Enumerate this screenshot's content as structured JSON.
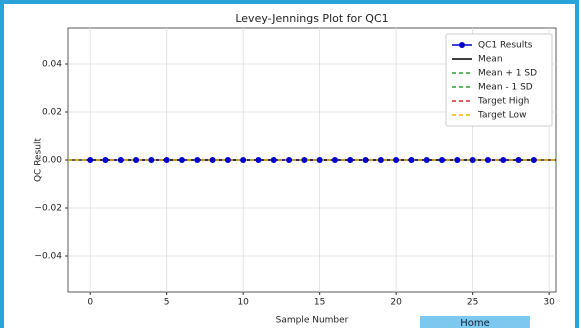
{
  "chart_data": {
    "type": "line",
    "title": "Levey-Jennings Plot for QC1",
    "x_label": "Sample Number",
    "y_label": "QC Result",
    "x": [
      0,
      1,
      2,
      3,
      4,
      5,
      6,
      7,
      8,
      9,
      10,
      11,
      12,
      13,
      14,
      15,
      16,
      17,
      18,
      19,
      20,
      21,
      22,
      23,
      24,
      25,
      26,
      27,
      28,
      29
    ],
    "series": [
      {
        "name": "QC1 Results",
        "color": "#0000cc",
        "values": [
          0,
          0,
          0,
          0,
          0,
          0,
          0,
          0,
          0,
          0,
          0,
          0,
          0,
          0,
          0,
          0,
          0,
          0,
          0,
          0,
          0,
          0,
          0,
          0,
          0,
          0,
          0,
          0,
          0,
          0
        ]
      }
    ],
    "hlines": [
      {
        "name": "Mean",
        "color": "#000000",
        "dashed": false,
        "value": 0
      },
      {
        "name": "Mean + 1 SD",
        "color": "#2ca02c",
        "dashed": true,
        "value": 0
      },
      {
        "name": "Mean - 1 SD",
        "color": "#2ca02c",
        "dashed": true,
        "value": 0
      },
      {
        "name": "Target High",
        "color": "#d62728",
        "dashed": true,
        "value": 0
      },
      {
        "name": "Target Low",
        "color": "#ffb000",
        "dashed": true,
        "value": 0
      }
    ],
    "xlim": [
      -1.45,
      30.45
    ],
    "ylim": [
      -0.055,
      0.055
    ],
    "xticks": [
      0,
      5,
      10,
      15,
      20,
      25,
      30
    ],
    "yticks": [
      {
        "value": -0.04,
        "label": "−0.04"
      },
      {
        "value": -0.02,
        "label": "−0.02"
      },
      {
        "value": 0,
        "label": "0.00"
      },
      0.02,
      0.04
    ],
    "grid": true,
    "legend": "upper right"
  },
  "home_button": "Home"
}
